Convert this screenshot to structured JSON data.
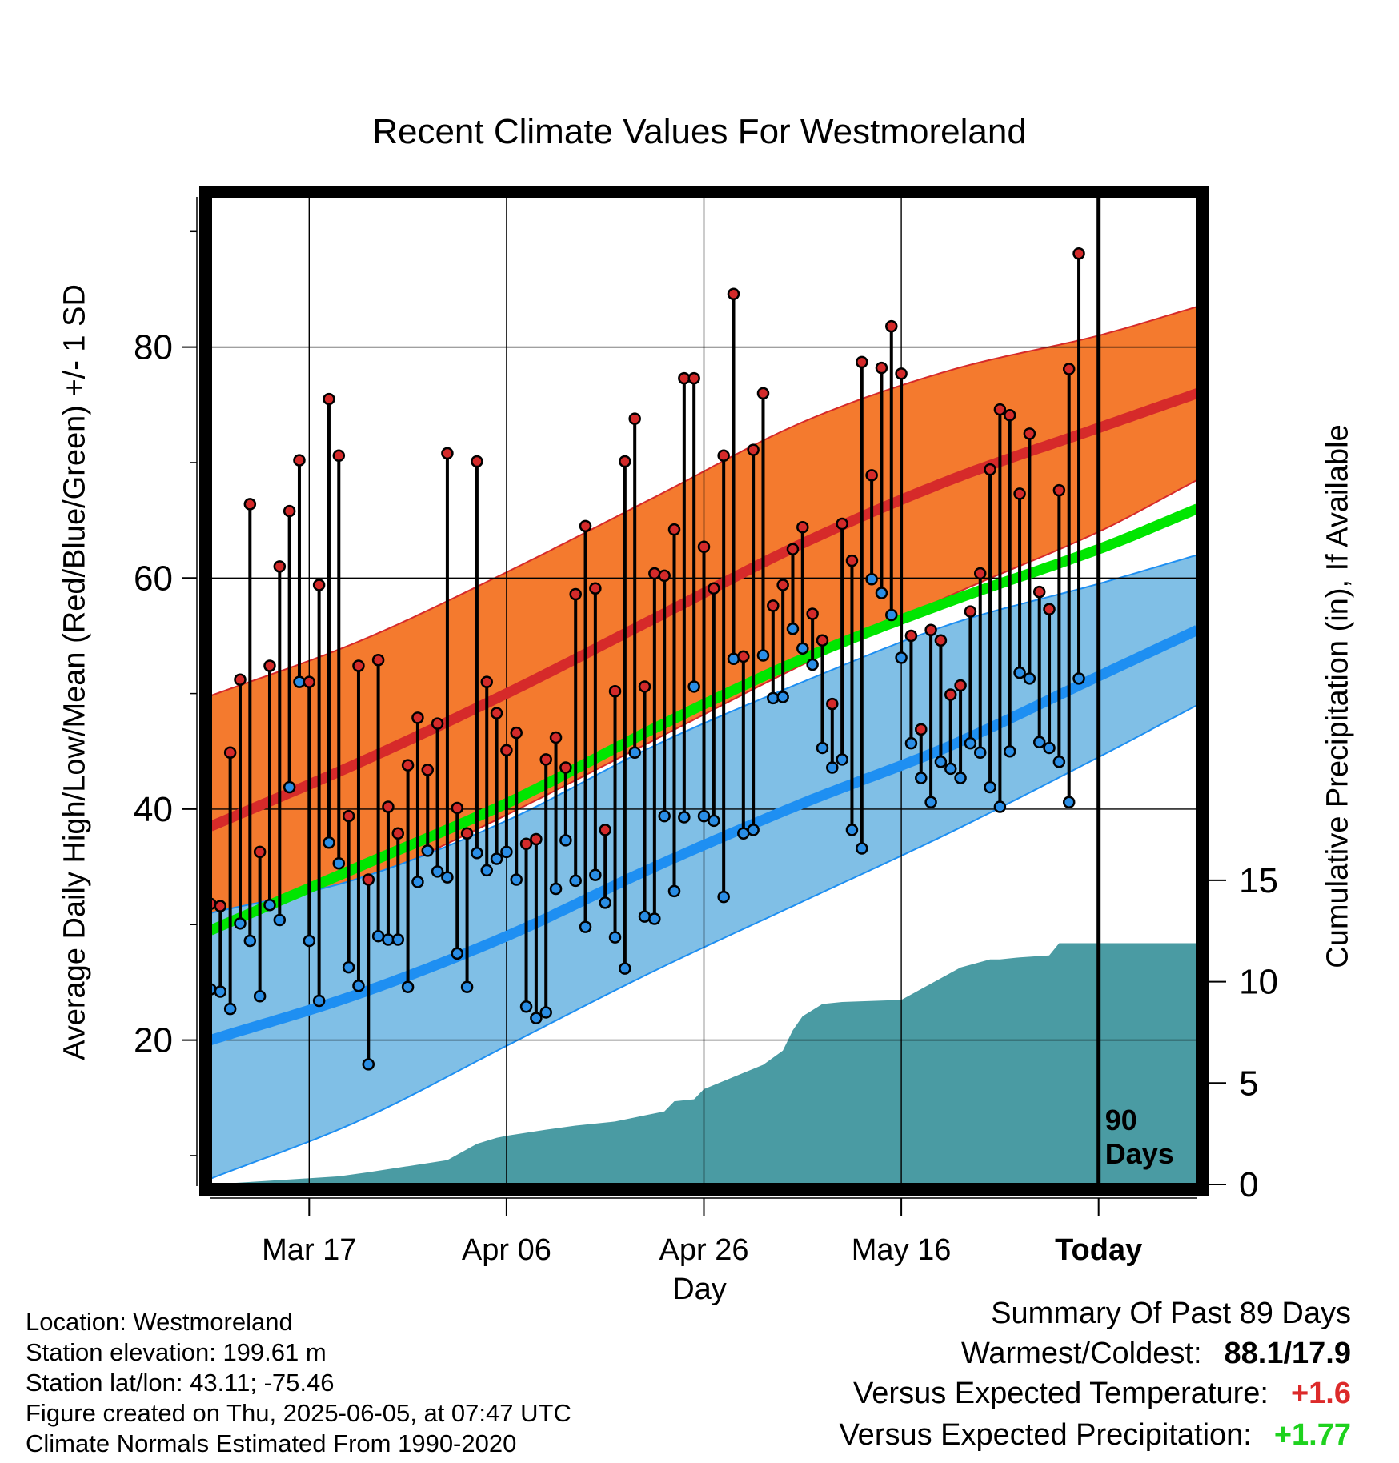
{
  "title": "Recent Climate Values For Westmoreland",
  "y_axis_left_label": "Average Daily High/Low/Mean (Red/Blue/Green) +/- 1 SD",
  "y_axis_right_label": "Cumulative Precipitation (in), If Available",
  "x_axis_label": "Day",
  "today_marker_label_line1": "90",
  "today_marker_label_line2": "Days",
  "station_info": {
    "location": "Location: Westmoreland",
    "elevation": "Station elevation: 199.61 m",
    "latlon": "Station lat/lon: 43.11; -75.46",
    "created": "Figure created on Thu, 2025-06-05, at 07:47 UTC",
    "normals": "Climate Normals Estimated From 1990-2020"
  },
  "summary": {
    "heading": "Summary Of Past 89 Days",
    "warm_cold_label": "Warmest/Coldest:",
    "warm_cold_value": "88.1/17.9",
    "temp_label": "Versus Expected Temperature:",
    "temp_value": "+1.6",
    "precip_label": "Versus Expected Precipitation:",
    "precip_value": "+1.77"
  },
  "colors": {
    "high_band": "#f47a2e",
    "high_mean": "#d62a2a",
    "low_band": "#80bfe6",
    "low_mean": "#1e8ff2",
    "mean_line": "#00e600",
    "precip_fill": "#4a9ba3",
    "temp_positive": "#dc2a2a",
    "precip_positive": "#1ed21e"
  },
  "chart_data": {
    "type": "line",
    "x_start": "2025-03-07",
    "x_end": "2025-06-15",
    "today": "2025-06-05",
    "x_ticks": [
      "Mar 17",
      "Apr 06",
      "Apr 26",
      "May 16",
      "Today"
    ],
    "x_tick_dates": [
      "2025-03-17",
      "2025-04-06",
      "2025-04-26",
      "2025-05-16",
      "2025-06-05"
    ],
    "ylim_temp": [
      7.5,
      93
    ],
    "y_ticks_temp": [
      20,
      40,
      60,
      80
    ],
    "ylim_precip": [
      0,
      48.7
    ],
    "y_ticks_precip": [
      0,
      5,
      10,
      15
    ],
    "grid": true,
    "normal_high": {
      "x": [
        "2025-03-07",
        "2025-03-22",
        "2025-04-06",
        "2025-04-21",
        "2025-05-06",
        "2025-05-21",
        "2025-06-05",
        "2025-06-15"
      ],
      "mean": [
        38.5,
        44,
        50,
        56.5,
        63,
        68.5,
        73,
        76
      ],
      "upper": [
        49.8,
        54.5,
        60.5,
        67,
        73.5,
        78,
        81,
        83.5
      ],
      "lower": [
        28.5,
        33.5,
        39.5,
        46,
        52.5,
        58.5,
        64,
        68.5
      ]
    },
    "normal_low": {
      "x": [
        "2025-03-07",
        "2025-03-22",
        "2025-04-06",
        "2025-04-21",
        "2025-05-06",
        "2025-05-21",
        "2025-06-05",
        "2025-06-15"
      ],
      "mean": [
        20,
        24,
        29,
        35,
        40.5,
        45.5,
        51.5,
        55.5
      ],
      "upper": [
        31,
        34,
        39,
        45.5,
        51,
        56,
        59.5,
        62
      ],
      "lower": [
        8,
        13,
        19.5,
        26,
        32,
        38,
        44.5,
        49
      ]
    },
    "normal_mean": {
      "x": [
        "2025-03-07",
        "2025-03-22",
        "2025-04-06",
        "2025-04-21",
        "2025-05-06",
        "2025-05-21",
        "2025-06-05",
        "2025-06-15"
      ],
      "values": [
        29.5,
        35,
        40.5,
        47,
        53,
        58,
        62.5,
        66
      ]
    },
    "daily_high": [
      31.8,
      31.6,
      44.9,
      51.2,
      66.4,
      36.3,
      52.4,
      61.0,
      65.8,
      70.2,
      51.0,
      59.4,
      75.5,
      70.6,
      39.4,
      52.4,
      33.9,
      52.9,
      40.2,
      37.9,
      43.8,
      47.9,
      43.4,
      47.4,
      70.8,
      40.1,
      37.9,
      70.1,
      51.0,
      48.3,
      45.1,
      46.6,
      37.0,
      37.4,
      44.3,
      46.2,
      43.6,
      58.6,
      64.5,
      59.1,
      38.2,
      50.2,
      70.1,
      73.8,
      50.6,
      60.4,
      60.2,
      64.2,
      77.3,
      77.3,
      62.7,
      59.1,
      70.6,
      84.6,
      53.2,
      71.1,
      76.0,
      57.6,
      59.4,
      62.5,
      64.4,
      56.9,
      54.6,
      49.1,
      64.7,
      61.5,
      78.7,
      68.9,
      78.2,
      81.8,
      77.7,
      55.0,
      46.9,
      55.5,
      54.6,
      49.9,
      50.7,
      57.1,
      60.4,
      69.4,
      74.6,
      74.1,
      67.3,
      72.5,
      58.8,
      57.3,
      67.6,
      78.1,
      88.1
    ],
    "daily_low": [
      24.4,
      24.2,
      22.7,
      30.1,
      28.6,
      23.8,
      31.7,
      30.4,
      41.9,
      51.0,
      28.6,
      23.4,
      37.1,
      35.3,
      26.3,
      24.7,
      17.9,
      29.0,
      28.7,
      28.7,
      24.6,
      33.7,
      36.4,
      34.6,
      34.1,
      27.5,
      24.6,
      36.2,
      34.7,
      35.7,
      36.3,
      33.9,
      22.9,
      21.9,
      22.4,
      33.1,
      37.3,
      33.8,
      29.8,
      34.3,
      31.9,
      28.9,
      26.2,
      44.9,
      30.7,
      30.5,
      39.4,
      32.9,
      39.3,
      50.6,
      39.4,
      39.0,
      32.4,
      53.0,
      37.9,
      38.2,
      53.3,
      49.6,
      49.7,
      55.6,
      53.9,
      52.5,
      45.3,
      43.6,
      44.3,
      38.2,
      36.6,
      59.9,
      58.7,
      56.8,
      53.1,
      45.7,
      42.7,
      40.6,
      44.1,
      43.5,
      42.7,
      45.7,
      44.9,
      41.9,
      40.2,
      45.0,
      51.8,
      51.3,
      45.8,
      45.3,
      44.1,
      40.6,
      51.3
    ],
    "cumulative_precip": {
      "x": [
        "2025-03-07",
        "2025-03-20",
        "2025-03-23",
        "2025-03-31",
        "2025-04-03",
        "2025-04-05",
        "2025-04-06",
        "2025-04-10",
        "2025-04-13",
        "2025-04-17",
        "2025-04-20",
        "2025-04-22",
        "2025-04-23",
        "2025-04-25",
        "2025-04-26",
        "2025-04-28",
        "2025-04-30",
        "2025-05-02",
        "2025-05-04",
        "2025-05-05",
        "2025-05-06",
        "2025-05-08",
        "2025-05-10",
        "2025-05-16",
        "2025-05-19",
        "2025-05-22",
        "2025-05-25",
        "2025-05-26",
        "2025-05-28",
        "2025-05-31",
        "2025-06-01",
        "2025-06-15"
      ],
      "values": [
        0,
        0.4,
        0.6,
        1.2,
        2.0,
        2.3,
        2.4,
        2.7,
        2.9,
        3.1,
        3.4,
        3.6,
        4.1,
        4.2,
        4.7,
        5.1,
        5.5,
        5.9,
        6.6,
        7.6,
        8.3,
        8.9,
        9.0,
        9.1,
        9.9,
        10.7,
        11.1,
        11.1,
        11.2,
        11.3,
        11.9,
        11.9
      ]
    }
  }
}
